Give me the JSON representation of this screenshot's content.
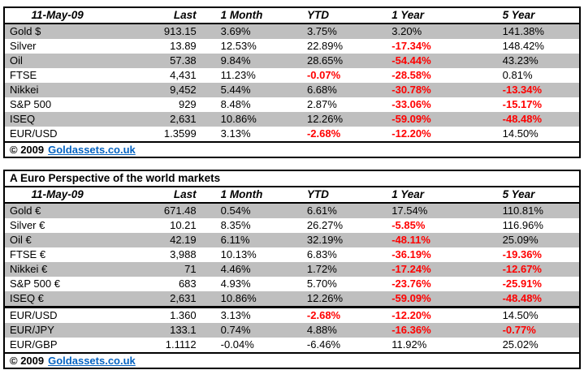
{
  "colors": {
    "stripe": "#BFBFBF",
    "negative": "#FF0000",
    "link": "#0563C1",
    "border": "#000000",
    "background": "#FFFFFF"
  },
  "chart_data": [
    {
      "type": "table",
      "name": "world-markets-usd",
      "date_header": "11-May-09",
      "columns": [
        "Last",
        "1 Month",
        "YTD",
        "1 Year",
        "5 Year"
      ],
      "rows": [
        {
          "label": "Gold $",
          "cells": [
            {
              "v": "913.15"
            },
            {
              "v": "3.69%"
            },
            {
              "v": "3.75%"
            },
            {
              "v": "3.20%"
            },
            {
              "v": "141.38%"
            }
          ]
        },
        {
          "label": "Silver",
          "cells": [
            {
              "v": "13.89"
            },
            {
              "v": "12.53%"
            },
            {
              "v": "22.89%"
            },
            {
              "v": "-17.34%",
              "neg": true
            },
            {
              "v": "148.42%"
            }
          ]
        },
        {
          "label": "Oil",
          "cells": [
            {
              "v": "57.38"
            },
            {
              "v": "9.84%"
            },
            {
              "v": "28.65%"
            },
            {
              "v": "-54.44%",
              "neg": true
            },
            {
              "v": "43.23%"
            }
          ]
        },
        {
          "label": "FTSE",
          "cells": [
            {
              "v": "4,431"
            },
            {
              "v": "11.23%"
            },
            {
              "v": "-0.07%",
              "neg": true
            },
            {
              "v": "-28.58%",
              "neg": true
            },
            {
              "v": "0.81%"
            }
          ]
        },
        {
          "label": "Nikkei",
          "cells": [
            {
              "v": "9,452"
            },
            {
              "v": "5.44%"
            },
            {
              "v": "6.68%"
            },
            {
              "v": "-30.78%",
              "neg": true
            },
            {
              "v": "-13.34%",
              "neg": true
            }
          ]
        },
        {
          "label": "S&P 500",
          "cells": [
            {
              "v": "929"
            },
            {
              "v": "8.48%"
            },
            {
              "v": "2.87%"
            },
            {
              "v": "-33.06%",
              "neg": true
            },
            {
              "v": "-15.17%",
              "neg": true
            }
          ]
        },
        {
          "label": "ISEQ",
          "cells": [
            {
              "v": "2,631"
            },
            {
              "v": "10.86%"
            },
            {
              "v": "12.26%"
            },
            {
              "v": "-59.09%",
              "neg": true
            },
            {
              "v": "-48.48%",
              "neg": true
            }
          ]
        },
        {
          "label": "EUR/USD",
          "cells": [
            {
              "v": "1.3599"
            },
            {
              "v": "3.13%"
            },
            {
              "v": "-2.68%",
              "neg": true
            },
            {
              "v": "-12.20%",
              "neg": true
            },
            {
              "v": "14.50%"
            }
          ]
        }
      ],
      "footer": {
        "copyright": "© 2009",
        "link": "Goldassets.co.uk"
      }
    },
    {
      "type": "table",
      "name": "world-markets-euro",
      "title": "A Euro Perspective of the world markets",
      "date_header": "11-May-09",
      "columns": [
        "Last",
        "1 Month",
        "YTD",
        "1 Year",
        "5 Year"
      ],
      "rows": [
        {
          "label": "Gold €",
          "cells": [
            {
              "v": "671.48"
            },
            {
              "v": "0.54%"
            },
            {
              "v": "6.61%"
            },
            {
              "v": "17.54%"
            },
            {
              "v": "110.81%"
            }
          ]
        },
        {
          "label": "Silver €",
          "cells": [
            {
              "v": "10.21"
            },
            {
              "v": "8.35%"
            },
            {
              "v": "26.27%"
            },
            {
              "v": "-5.85%",
              "neg": true
            },
            {
              "v": "116.96%"
            }
          ]
        },
        {
          "label": "Oil €",
          "cells": [
            {
              "v": "42.19"
            },
            {
              "v": "6.11%"
            },
            {
              "v": "32.19%"
            },
            {
              "v": "-48.11%",
              "neg": true
            },
            {
              "v": "25.09%"
            }
          ]
        },
        {
          "label": "FTSE €",
          "cells": [
            {
              "v": "3,988"
            },
            {
              "v": "10.13%"
            },
            {
              "v": "6.83%"
            },
            {
              "v": "-36.19%",
              "neg": true
            },
            {
              "v": "-19.36%",
              "neg": true
            }
          ]
        },
        {
          "label": "Nikkei €",
          "cells": [
            {
              "v": "71"
            },
            {
              "v": "4.46%"
            },
            {
              "v": "1.72%"
            },
            {
              "v": "-17.24%",
              "neg": true
            },
            {
              "v": "-12.67%",
              "neg": true
            }
          ]
        },
        {
          "label": "S&P 500 €",
          "cells": [
            {
              "v": "683"
            },
            {
              "v": "4.93%"
            },
            {
              "v": "5.70%"
            },
            {
              "v": "-23.76%",
              "neg": true
            },
            {
              "v": "-25.91%",
              "neg": true
            }
          ]
        },
        {
          "label": "ISEQ €",
          "cells": [
            {
              "v": "2,631"
            },
            {
              "v": "10.86%"
            },
            {
              "v": "12.26%"
            },
            {
              "v": "-59.09%",
              "neg": true
            },
            {
              "v": "-48.48%",
              "neg": true
            }
          ]
        }
      ],
      "fx_rows": [
        {
          "label": "EUR/USD",
          "cells": [
            {
              "v": "1.360"
            },
            {
              "v": "3.13%"
            },
            {
              "v": "-2.68%",
              "neg": true
            },
            {
              "v": "-12.20%",
              "neg": true
            },
            {
              "v": "14.50%"
            }
          ]
        },
        {
          "label": "EUR/JPY",
          "cells": [
            {
              "v": "133.1"
            },
            {
              "v": "0.74%"
            },
            {
              "v": "4.88%"
            },
            {
              "v": "-16.36%",
              "neg": true
            },
            {
              "v": "-0.77%",
              "neg": true
            }
          ]
        },
        {
          "label": "EUR/GBP",
          "cells": [
            {
              "v": "1.1112"
            },
            {
              "v": "-0.04%"
            },
            {
              "v": "-6.46%"
            },
            {
              "v": "11.92%"
            },
            {
              "v": "25.02%"
            }
          ]
        }
      ],
      "footer": {
        "copyright": "© 2009",
        "link": "Goldassets.co.uk"
      }
    }
  ]
}
